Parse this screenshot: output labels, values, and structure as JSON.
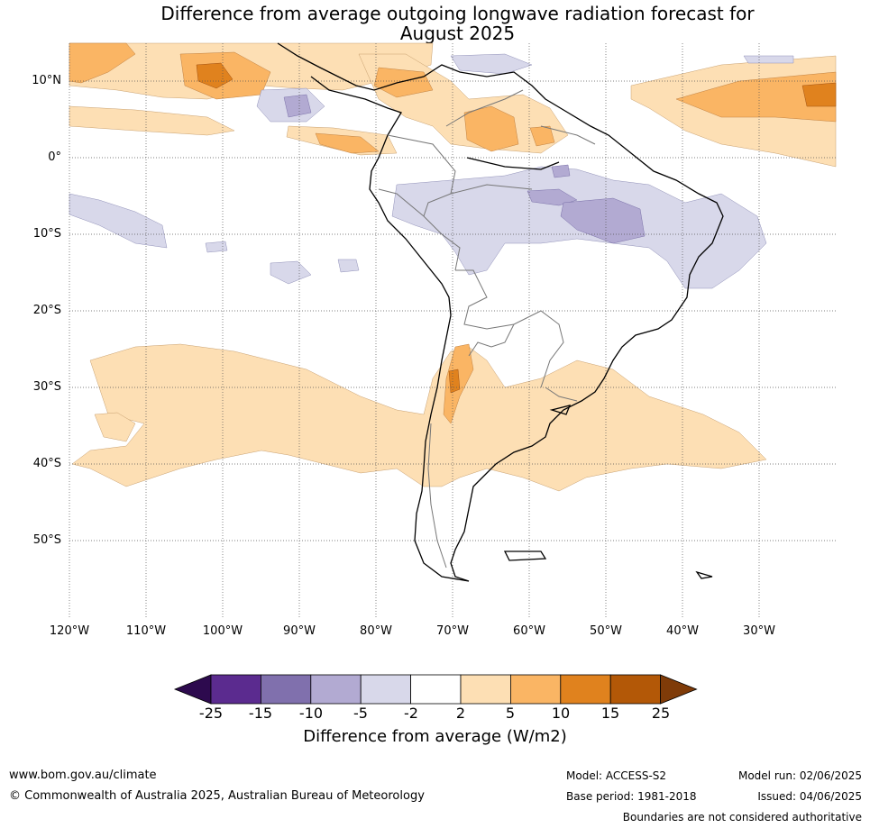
{
  "title_line1": "Difference from average outgoing longwave radiation forecast for",
  "title_line2": "August 2025",
  "lat_labels": [
    "10°N",
    "0°",
    "10°S",
    "20°S",
    "30°S",
    "40°S",
    "50°S"
  ],
  "lon_labels": [
    "120°W",
    "110°W",
    "100°W",
    "90°W",
    "80°W",
    "70°W",
    "60°W",
    "50°W",
    "40°W",
    "30°W"
  ],
  "colorbar": {
    "ticks": [
      "-25",
      "-15",
      "-10",
      "-5",
      "-2",
      "2",
      "5",
      "10",
      "15",
      "25"
    ],
    "colors": [
      "#2d0a4e",
      "#5b2b8f",
      "#8070ad",
      "#b2aad2",
      "#d8d8ea",
      "#ffffff",
      "#fddfb4",
      "#fab564",
      "#e0821e",
      "#b35807",
      "#7f3b08"
    ],
    "label": "Difference from average (W/m2)"
  },
  "footer": {
    "website": "www.bom.gov.au/climate",
    "copyright": "© Commonwealth of Australia 2025, Australian Bureau of Meteorology",
    "model": "Model: ACCESS-S2",
    "base_period": "Base period: 1981-2018",
    "model_run": "Model run: 02/06/2025",
    "issued": "Issued: 04/06/2025",
    "disclaimer": "Boundaries are not considered authoritative"
  }
}
